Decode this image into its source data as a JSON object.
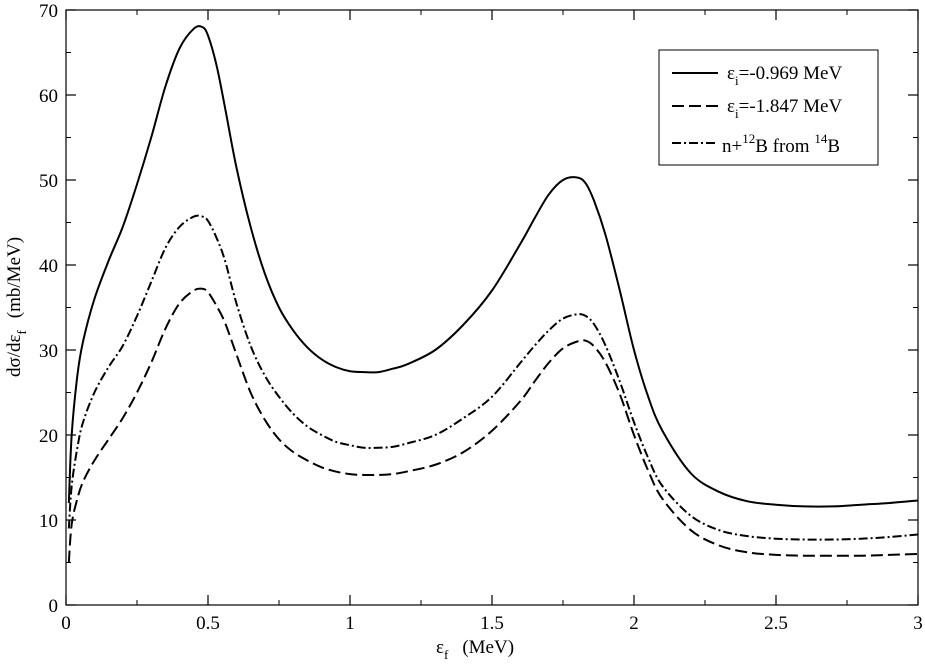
{
  "chart_data": {
    "type": "line",
    "xlabel": {
      "main": "ε",
      "sub": "f",
      "unit": "(MeV)"
    },
    "ylabel": {
      "prefix": "dσ/dε",
      "sub": "f",
      "unit": "(mb/MeV)"
    },
    "xlim": [
      0,
      3
    ],
    "ylim": [
      0,
      70
    ],
    "xticks": [
      0,
      0.5,
      1,
      1.5,
      2,
      2.5,
      3
    ],
    "xtick_labels": [
      "0",
      "0.5",
      "1",
      "1.5",
      "2",
      "2.5",
      "3"
    ],
    "yticks": [
      0,
      10,
      20,
      30,
      40,
      50,
      60,
      70
    ],
    "ytick_labels": [
      "0",
      "10",
      "20",
      "30",
      "40",
      "50",
      "60",
      "70"
    ],
    "grid": false,
    "legend_position": "top-right",
    "series": [
      {
        "name": "εi=-0.969 MeV",
        "legend_parts": {
          "main": "ε",
          "sub": "i",
          "rest": "=-0.969 MeV"
        },
        "style": "solid",
        "x": [
          0.01,
          0.02,
          0.04,
          0.06,
          0.1,
          0.15,
          0.2,
          0.25,
          0.3,
          0.35,
          0.4,
          0.45,
          0.48,
          0.5,
          0.53,
          0.56,
          0.6,
          0.65,
          0.7,
          0.75,
          0.8,
          0.85,
          0.9,
          0.95,
          1.0,
          1.05,
          1.1,
          1.15,
          1.2,
          1.3,
          1.4,
          1.5,
          1.6,
          1.65,
          1.7,
          1.75,
          1.8,
          1.83,
          1.86,
          1.9,
          1.95,
          2.0,
          2.05,
          2.1,
          2.2,
          2.3,
          2.4,
          2.5,
          2.6,
          2.7,
          2.8,
          2.9,
          3.0
        ],
        "y": [
          12,
          20,
          27,
          31,
          36,
          40.5,
          44.5,
          49.5,
          55,
          61,
          65.5,
          67.8,
          68,
          67,
          63.5,
          58.5,
          51.5,
          44.5,
          39,
          35,
          32.3,
          30.3,
          28.9,
          28,
          27.5,
          27.4,
          27.4,
          27.8,
          28.3,
          30,
          33,
          37,
          42.5,
          45.5,
          48.3,
          50,
          50.3,
          49.6,
          47.5,
          43.5,
          37,
          30,
          24.5,
          20.5,
          15.5,
          13.3,
          12.2,
          11.8,
          11.6,
          11.6,
          11.8,
          12,
          12.3
        ]
      },
      {
        "name": "εi=-1.847 MeV",
        "legend_parts": {
          "main": "ε",
          "sub": "i",
          "rest": "=-1.847 MeV"
        },
        "style": "dashed",
        "x": [
          0.01,
          0.02,
          0.04,
          0.06,
          0.1,
          0.15,
          0.2,
          0.25,
          0.3,
          0.35,
          0.4,
          0.45,
          0.48,
          0.5,
          0.53,
          0.56,
          0.6,
          0.65,
          0.7,
          0.75,
          0.8,
          0.85,
          0.9,
          0.95,
          1.0,
          1.05,
          1.1,
          1.15,
          1.2,
          1.3,
          1.4,
          1.5,
          1.6,
          1.65,
          1.7,
          1.75,
          1.8,
          1.83,
          1.86,
          1.9,
          1.95,
          2.0,
          2.05,
          2.1,
          2.2,
          2.3,
          2.4,
          2.5,
          2.6,
          2.7,
          2.8,
          2.9,
          3.0
        ],
        "y": [
          5,
          9.5,
          12.5,
          14.5,
          17,
          19.5,
          22,
          25,
          28.5,
          32.5,
          35.5,
          37,
          37.2,
          36.8,
          35.2,
          33.2,
          29.5,
          25,
          21.8,
          19.5,
          18,
          17,
          16.2,
          15.7,
          15.4,
          15.3,
          15.3,
          15.4,
          15.7,
          16.5,
          18,
          20.5,
          24,
          26.3,
          28.5,
          30.2,
          31,
          31.1,
          30.4,
          28.5,
          24.8,
          20,
          15.8,
          12.5,
          8.8,
          7,
          6.2,
          5.9,
          5.8,
          5.8,
          5.8,
          5.9,
          6
        ]
      },
      {
        "name": "n+12B from 14B",
        "legend_parts": {
          "a": "n+",
          "sup1": "12",
          "b": "B from ",
          "sup2": "14",
          "c": "B"
        },
        "style": "dashdot",
        "x": [
          0.01,
          0.02,
          0.04,
          0.06,
          0.1,
          0.15,
          0.2,
          0.25,
          0.3,
          0.35,
          0.4,
          0.45,
          0.48,
          0.5,
          0.53,
          0.56,
          0.6,
          0.65,
          0.7,
          0.75,
          0.8,
          0.85,
          0.9,
          0.95,
          1.0,
          1.05,
          1.1,
          1.15,
          1.2,
          1.3,
          1.4,
          1.5,
          1.6,
          1.65,
          1.7,
          1.75,
          1.8,
          1.83,
          1.86,
          1.9,
          1.95,
          2.0,
          2.05,
          2.1,
          2.2,
          2.3,
          2.4,
          2.5,
          2.6,
          2.7,
          2.8,
          2.9,
          3.0
        ],
        "y": [
          9,
          14,
          18.5,
          21.5,
          25,
          28,
          30.5,
          34,
          38,
          42,
          44.5,
          45.7,
          45.7,
          45.2,
          43.2,
          40.5,
          35.5,
          30.5,
          27,
          24.5,
          22.5,
          21,
          20,
          19.2,
          18.8,
          18.5,
          18.5,
          18.6,
          19,
          20,
          22,
          24.5,
          28.5,
          30.5,
          32.3,
          33.7,
          34.2,
          34,
          33,
          30.5,
          26.3,
          21.5,
          17.3,
          14,
          10.5,
          8.8,
          8.1,
          7.8,
          7.7,
          7.7,
          7.8,
          8,
          8.3
        ]
      }
    ]
  }
}
